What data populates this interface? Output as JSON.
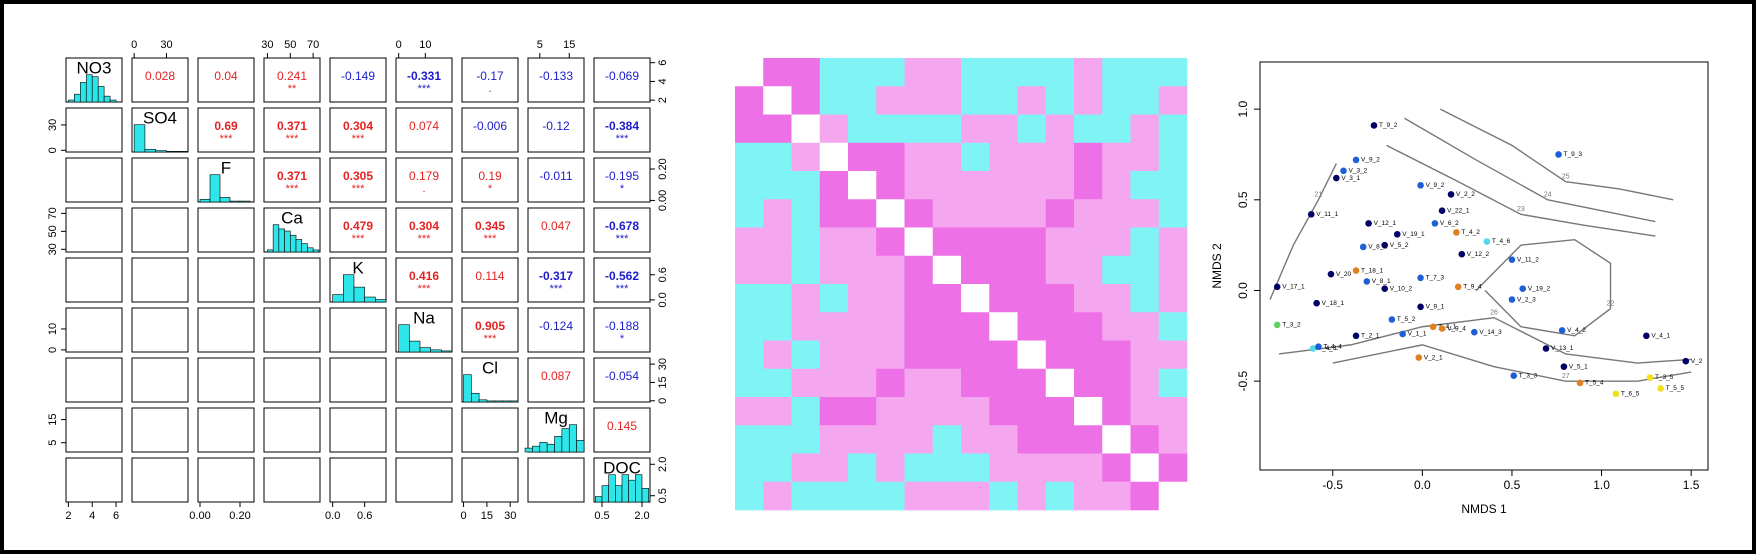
{
  "chart_data": [
    {
      "type": "scatter_matrix",
      "hist_color": "#2ee6ea",
      "positive_color": "#e52222",
      "negative_color": "#1c1ccc",
      "variables": [
        {
          "name": "NO3",
          "lim": [
            1.8,
            6.5
          ],
          "ticks": [
            2,
            4,
            6
          ],
          "bins": [
            2,
            2.5,
            3,
            3.5,
            4,
            4.5,
            5,
            5.5,
            6
          ],
          "counts": [
            1,
            4,
            10,
            14,
            13,
            8,
            3,
            1
          ]
        },
        {
          "name": "SO4",
          "lim": [
            -2,
            50
          ],
          "ticks": [
            0,
            30
          ],
          "bins": [
            0,
            10,
            20,
            30,
            40,
            50
          ],
          "counts": [
            40,
            4,
            2,
            1,
            1
          ]
        },
        {
          "name": "F",
          "lim": [
            -0.01,
            0.27
          ],
          "ticks": [
            {
              "value": 0,
              "label": "0.00"
            },
            {
              "value": 0.2,
              "label": "0.20"
            }
          ],
          "bins": [
            0,
            0.05,
            0.1,
            0.15,
            0.2,
            0.25
          ],
          "counts": [
            3,
            30,
            5,
            1,
            1
          ]
        },
        {
          "name": "Ca",
          "lim": [
            27,
            76
          ],
          "ticks": [
            30,
            50,
            70
          ],
          "bins": [
            30,
            35,
            40,
            45,
            50,
            55,
            60,
            65,
            70,
            75
          ],
          "counts": [
            2,
            26,
            22,
            20,
            16,
            12,
            8,
            4,
            2
          ]
        },
        {
          "name": "K",
          "lim": [
            -0.05,
            1.0
          ],
          "ticks": [
            {
              "value": 0,
              "label": "0.0"
            },
            {
              "value": 0.6,
              "label": "0.6"
            }
          ],
          "bins": [
            0,
            0.2,
            0.4,
            0.6,
            0.8,
            1.0
          ],
          "counts": [
            6,
            22,
            12,
            4,
            2
          ]
        },
        {
          "name": "Na",
          "lim": [
            -1,
            20
          ],
          "ticks": [
            0,
            10
          ],
          "bins": [
            0,
            4,
            8,
            12,
            16,
            20
          ],
          "counts": [
            25,
            10,
            4,
            2,
            1
          ]
        },
        {
          "name": "Cl",
          "lim": [
            -1,
            35
          ],
          "ticks": [
            0,
            15,
            30
          ],
          "bins": [
            0,
            5,
            10,
            15,
            20,
            25,
            30,
            35
          ],
          "counts": [
            25,
            8,
            2,
            1,
            1,
            1,
            1
          ]
        },
        {
          "name": "Mg",
          "lim": [
            1,
            20
          ],
          "ticks": [
            5,
            15
          ],
          "bins": [
            0,
            2.5,
            5,
            7.5,
            10,
            12.5,
            15,
            17.5,
            20
          ],
          "counts": [
            2,
            3,
            5,
            4,
            8,
            12,
            14,
            6
          ]
        },
        {
          "name": "DOC",
          "lim": [
            0.2,
            2.3
          ],
          "ticks": [
            0.5,
            {
              "value": 2,
              "label": "2.0"
            }
          ],
          "bins": [
            0.25,
            0.5,
            0.75,
            1,
            1.25,
            1.5,
            1.75,
            2,
            2.25
          ],
          "counts": [
            2,
            6,
            10,
            6,
            10,
            8,
            10,
            5
          ]
        }
      ],
      "correlations": [
        [
          0.028,
          0.04,
          0.241,
          -0.149,
          -0.331,
          -0.17,
          -0.133,
          -0.069
        ],
        [
          0.69,
          0.371,
          0.304,
          0.074,
          -0.006,
          -0.12,
          -0.384
        ],
        [
          0.371,
          0.305,
          0.179,
          0.19,
          -0.011,
          -0.195
        ],
        [
          0.479,
          0.304,
          0.345,
          0.047,
          -0.678
        ],
        [
          0.416,
          0.114,
          -0.317,
          -0.562
        ],
        [
          0.905,
          -0.124,
          -0.188
        ],
        [
          0.087,
          -0.054
        ],
        [
          0.145
        ]
      ],
      "significance": [
        [
          null,
          null,
          "**",
          null,
          "***",
          ".",
          null,
          null
        ],
        [
          "***",
          "***",
          "***",
          null,
          null,
          null,
          "***"
        ],
        [
          "***",
          "***",
          ".",
          "*",
          null,
          "*"
        ],
        [
          "***",
          "***",
          "***",
          null,
          "***"
        ],
        [
          "***",
          null,
          "***",
          "***"
        ],
        [
          "***",
          null,
          "*"
        ],
        [
          null,
          null
        ],
        [
          null
        ]
      ]
    },
    {
      "type": "heatmap",
      "palette": [
        "#80f4f4",
        "#f4a6ef",
        "#ee70e6",
        "#ffffff"
      ],
      "values": [
        [
          3,
          2,
          2,
          0,
          0,
          0,
          1,
          1,
          0,
          0,
          0,
          0,
          1,
          0,
          0,
          0
        ],
        [
          2,
          3,
          2,
          0,
          0,
          1,
          1,
          1,
          0,
          0,
          1,
          0,
          1,
          0,
          0,
          1
        ],
        [
          2,
          2,
          3,
          1,
          0,
          0,
          0,
          0,
          1,
          1,
          0,
          1,
          0,
          0,
          1,
          0
        ],
        [
          0,
          0,
          1,
          3,
          2,
          2,
          1,
          1,
          0,
          1,
          1,
          1,
          2,
          1,
          1,
          0
        ],
        [
          0,
          0,
          0,
          2,
          3,
          2,
          1,
          1,
          1,
          1,
          1,
          1,
          2,
          1,
          0,
          0
        ],
        [
          0,
          1,
          0,
          2,
          2,
          3,
          2,
          1,
          1,
          1,
          1,
          2,
          1,
          1,
          1,
          0
        ],
        [
          1,
          1,
          0,
          1,
          1,
          2,
          3,
          2,
          2,
          2,
          2,
          1,
          1,
          1,
          0,
          1
        ],
        [
          1,
          1,
          0,
          1,
          1,
          1,
          2,
          3,
          2,
          2,
          2,
          1,
          1,
          0,
          0,
          1
        ],
        [
          0,
          0,
          1,
          0,
          1,
          1,
          2,
          2,
          3,
          2,
          2,
          2,
          1,
          1,
          0,
          1
        ],
        [
          0,
          0,
          1,
          1,
          1,
          1,
          2,
          2,
          2,
          3,
          2,
          2,
          2,
          1,
          1,
          0
        ],
        [
          0,
          1,
          0,
          1,
          1,
          1,
          2,
          2,
          2,
          2,
          3,
          2,
          2,
          2,
          1,
          1
        ],
        [
          0,
          0,
          1,
          1,
          1,
          2,
          1,
          1,
          2,
          2,
          2,
          3,
          2,
          2,
          1,
          0
        ],
        [
          1,
          1,
          0,
          2,
          2,
          1,
          1,
          1,
          1,
          2,
          2,
          2,
          3,
          2,
          1,
          1
        ],
        [
          0,
          0,
          0,
          1,
          1,
          1,
          1,
          0,
          1,
          1,
          2,
          2,
          2,
          3,
          2,
          1
        ],
        [
          0,
          0,
          1,
          1,
          0,
          1,
          0,
          0,
          0,
          1,
          1,
          1,
          1,
          2,
          3,
          2
        ],
        [
          0,
          1,
          0,
          0,
          0,
          0,
          1,
          1,
          1,
          0,
          1,
          0,
          1,
          1,
          2,
          3
        ]
      ]
    },
    {
      "type": "scatter",
      "x_label": "NMDS 1",
      "y_label": "NMDS 2",
      "xlim": [
        -0.906,
        1.594
      ],
      "ylim": [
        -0.99,
        1.26
      ],
      "xticks": [
        -0.5,
        {
          "value": 0,
          "label": "0.0"
        },
        0.5,
        {
          "value": 1,
          "label": "1.0"
        },
        1.5
      ],
      "yticks": [
        -0.5,
        {
          "value": 0,
          "label": "0.0"
        },
        0.5,
        {
          "value": 1,
          "label": "1.0"
        }
      ],
      "contour_color": "#777777",
      "contours": [
        {
          "level": 21,
          "x": [
            -0.85,
            -0.72,
            -0.58,
            -0.48
          ],
          "y": [
            -0.05,
            0.25,
            0.5,
            0.7
          ]
        },
        {
          "level": 22,
          "x": [
            0.3,
            0.55,
            0.85,
            1.05,
            1.05,
            0.85,
            0.55,
            0.35
          ],
          "y": [
            0.0,
            0.25,
            0.28,
            0.15,
            -0.1,
            -0.25,
            -0.2,
            0.0
          ]
        },
        {
          "level": 23,
          "x": [
            -0.2,
            0.2,
            0.55,
            0.9,
            1.3
          ],
          "y": [
            0.8,
            0.6,
            0.42,
            0.36,
            0.3
          ]
        },
        {
          "level": 24,
          "x": [
            -0.1,
            0.3,
            0.7,
            1.0,
            1.3
          ],
          "y": [
            0.95,
            0.72,
            0.5,
            0.44,
            0.38
          ]
        },
        {
          "level": 25,
          "x": [
            0.1,
            0.5,
            0.8,
            1.1,
            1.4
          ],
          "y": [
            1.0,
            0.8,
            0.6,
            0.56,
            0.5
          ]
        },
        {
          "level": 26,
          "x": [
            -0.8,
            -0.4,
            0.0,
            0.4,
            0.8,
            1.2,
            1.5
          ],
          "y": [
            -0.35,
            -0.3,
            -0.2,
            -0.15,
            -0.35,
            -0.4,
            -0.38
          ]
        },
        {
          "level": 27,
          "x": [
            -0.5,
            0.0,
            0.4,
            0.8,
            1.2,
            1.5
          ],
          "y": [
            -0.4,
            -0.3,
            -0.42,
            -0.5,
            -0.5,
            -0.45
          ]
        }
      ],
      "labels": [
        "T_9_2",
        "T_9_3",
        "V_9_2",
        "V_3_2",
        "V_3_1",
        "V_9_2",
        "V_2_2",
        "V_11_1",
        "V_22_1",
        "V_12_1",
        "V_19_1",
        "V_6_2",
        "T_4_6",
        "T_4_2",
        "V_5_2",
        "V_8_2",
        "V_12_2",
        "V_11_2",
        "V_20",
        "T_18_1",
        "V_8_1",
        "T_7_3",
        "V_17_1",
        "V_10_2",
        "T_9_4",
        "V_19_2",
        "V_2_3",
        "V_18_1",
        "V_9_1",
        "T_5_2",
        "V_14_3",
        "T_4_1",
        "V_9_4",
        "V_4_2",
        "V_4_1",
        "V_13_1",
        "V_1_1",
        "T_2_1",
        "V_2",
        "T_3_2",
        "T_4_3",
        "T_4_4",
        "V_5_1",
        "T_3_3",
        "V_2_1",
        "T_3_5",
        "T_5_4",
        "T_5_5",
        "T_6_5"
      ],
      "x": [
        -0.27,
        0.76,
        -0.37,
        -0.44,
        -0.48,
        -0.01,
        0.16,
        -0.62,
        0.11,
        -0.3,
        -0.14,
        0.07,
        0.36,
        0.19,
        -0.21,
        -0.33,
        0.22,
        0.5,
        -0.51,
        -0.37,
        -0.31,
        -0.01,
        -0.81,
        -0.21,
        0.2,
        0.56,
        0.5,
        -0.59,
        -0.01,
        -0.17,
        0.29,
        0.06,
        0.11,
        0.78,
        1.25,
        0.69,
        -0.11,
        -0.37,
        1.47,
        -0.81,
        -0.61,
        -0.58,
        0.79,
        0.51,
        -0.02,
        1.27,
        0.88,
        1.33,
        1.08
      ],
      "y": [
        0.91,
        0.75,
        0.72,
        0.66,
        0.62,
        0.58,
        0.53,
        0.42,
        0.44,
        0.37,
        0.31,
        0.37,
        0.27,
        0.32,
        0.25,
        0.24,
        0.2,
        0.17,
        0.09,
        0.11,
        0.05,
        0.07,
        0.02,
        0.01,
        0.02,
        0.01,
        -0.05,
        -0.07,
        -0.09,
        -0.16,
        -0.23,
        -0.2,
        -0.21,
        -0.22,
        -0.25,
        -0.32,
        -0.24,
        -0.25,
        -0.39,
        -0.19,
        -0.32,
        -0.31,
        -0.42,
        -0.47,
        -0.37,
        -0.48,
        -0.51,
        -0.54,
        -0.57
      ],
      "colors": [
        "#000066",
        "#1f5fd6",
        "#1f5fd6",
        "#1f5fd6",
        "#000066",
        "#1f5fd6",
        "#000066",
        "#000066",
        "#000066",
        "#000066",
        "#000066",
        "#1f5fd6",
        "#4fd8ea",
        "#e08020",
        "#000066",
        "#1f5fd6",
        "#000066",
        "#1f5fd6",
        "#000066",
        "#e08020",
        "#1f5fd6",
        "#1f5fd6",
        "#000066",
        "#000066",
        "#e08020",
        "#1f5fd6",
        "#1f5fd6",
        "#000066",
        "#000066",
        "#1f5fd6",
        "#1f5fd6",
        "#e08020",
        "#e08020",
        "#1f5fd6",
        "#000066",
        "#000066",
        "#1f5fd6",
        "#000066",
        "#000066",
        "#60d060",
        "#4fd8ea",
        "#1f5fd6",
        "#000066",
        "#1f5fd6",
        "#e08020",
        "#f0e020",
        "#e08020",
        "#f0e020",
        "#f0e020"
      ]
    }
  ]
}
